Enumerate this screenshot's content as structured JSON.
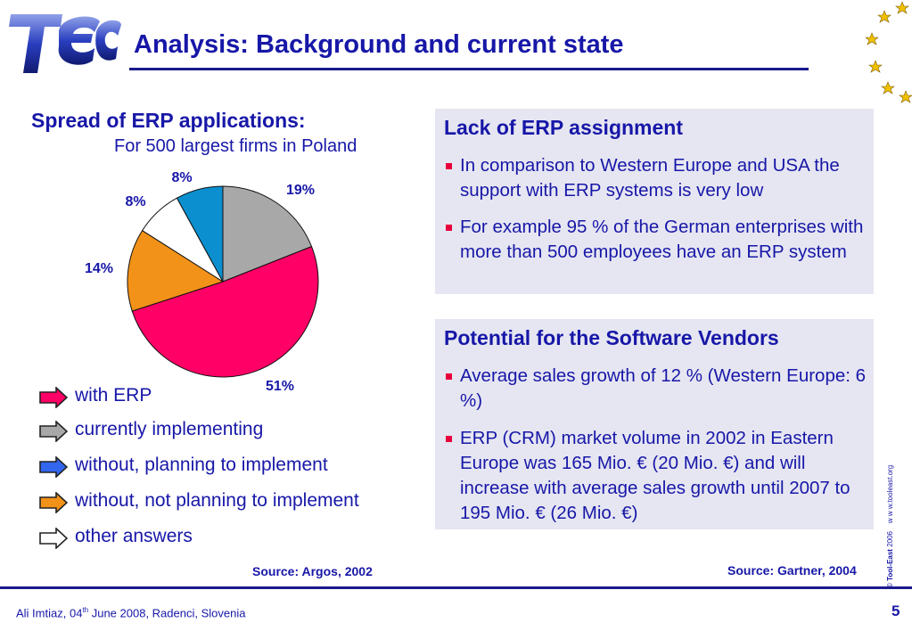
{
  "slide": {
    "title": "Analysis: Background and current state",
    "page_number": "5"
  },
  "logo": {
    "text": "TEC"
  },
  "chart_data": {
    "type": "pie",
    "title": "Spread of ERP applications:",
    "subtitle": "For 500 largest firms in Poland",
    "slices": [
      {
        "label": "currently implementing",
        "value": 19,
        "label_text": "19%",
        "color": "#a8a8a8"
      },
      {
        "label": "with ERP",
        "value": 51,
        "label_text": "51%",
        "color": "#ff0066"
      },
      {
        "label": "without, not planning to implement",
        "value": 14,
        "label_text": "14%",
        "color": "#f39218"
      },
      {
        "label": "other answers",
        "value": 8,
        "label_text": "8%",
        "color": "#ffffff"
      },
      {
        "label": "without, planning to implement",
        "value": 8,
        "label_text": "8%",
        "color": "#0b8fce"
      }
    ],
    "source": "Source: Argos, 2002"
  },
  "legend": [
    {
      "label": "with ERP",
      "color": "#ff0066"
    },
    {
      "label": "currently implementing",
      "color": "#a8a8a8"
    },
    {
      "label": "without, planning to implement",
      "color": "#3366ee"
    },
    {
      "label": "without, not planning to implement",
      "color": "#f39218"
    },
    {
      "label": "other answers",
      "color": "#ffffff"
    }
  ],
  "box1": {
    "title": "Lack of ERP assignment",
    "bullets": [
      "In comparison to Western Europe and USA the support with ERP systems is very low",
      "For example 95 % of the German enterprises with more than 500 employees have an ERP system"
    ]
  },
  "box2": {
    "title": "Potential for the Software Vendors",
    "bullets": [
      "Average sales growth of 12 % (Western Europe: 6 %)",
      "ERP (CRM) market volume in 2002 in Eastern Europe was 165 Mio. € (20 Mio. €) and will increase with average sales growth until 2007 to 195 Mio. € (26 Mio. €)"
    ],
    "source": "Source: Gartner, 2004"
  },
  "footer": {
    "name": "Ali Imtiaz, ",
    "day": "04",
    "day_suffix": "th",
    "rest": " June 2008, Radenci, Slovenia"
  },
  "copyright": {
    "brand": "© Tool-East",
    "year": " 2006",
    "url": "w w w.tooleast.org"
  },
  "colors": {
    "primary": "#1717a8",
    "accent": "#e8003c",
    "box_bg": "#e6e6f2"
  }
}
